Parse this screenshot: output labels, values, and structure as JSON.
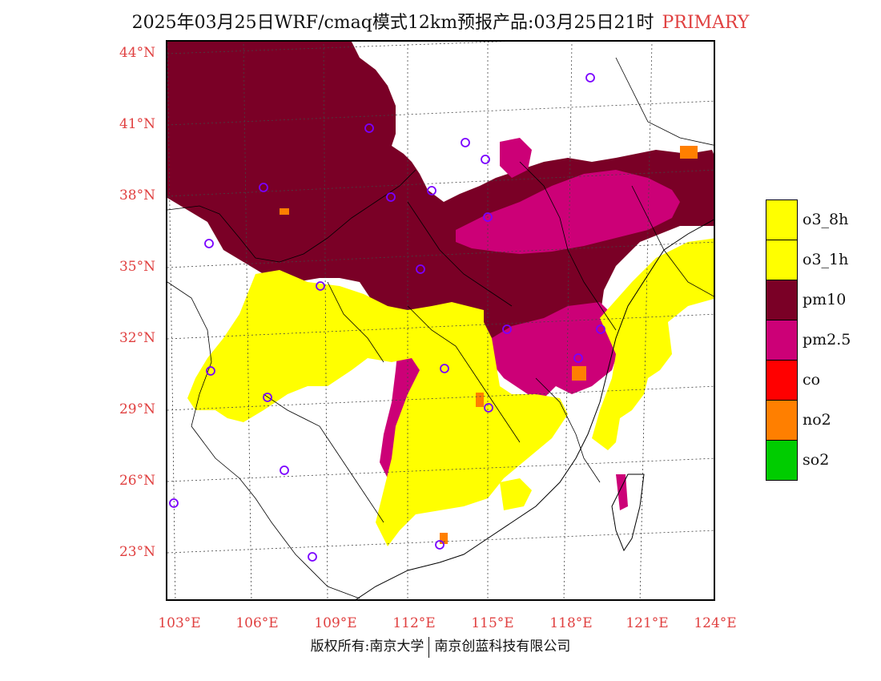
{
  "title": {
    "main": "2025年03月25日WRF/cmaq模式12km预报产品:03月25日21时",
    "tag": "PRIMARY"
  },
  "lat_labels": [
    "44°N",
    "41°N",
    "38°N",
    "35°N",
    "32°N",
    "29°N",
    "26°N",
    "23°N"
  ],
  "lon_labels": [
    "103°E",
    "106°E",
    "109°E",
    "112°E",
    "115°E",
    "118°E",
    "121°E",
    "124°E"
  ],
  "legend": [
    {
      "label": "o3_8h",
      "color": "#ffff00"
    },
    {
      "label": "o3_1h",
      "color": "#ffff00"
    },
    {
      "label": "pm10",
      "color": "#7a0026"
    },
    {
      "label": "pm2.5",
      "color": "#cc0077"
    },
    {
      "label": "co",
      "color": "#ff0000"
    },
    {
      "label": "no2",
      "color": "#ff7f00"
    },
    {
      "label": "so2",
      "color": "#00cc00"
    }
  ],
  "colors": {
    "pm10": "#7a0026",
    "pm25": "#cc0077",
    "o3": "#ffff00",
    "no2": "#ff7f00",
    "station": "#7a00ff",
    "label": "#e04040"
  },
  "copyright": {
    "left": "版权所有:南京大学",
    "right": "南京创蓝科技有限公司"
  }
}
